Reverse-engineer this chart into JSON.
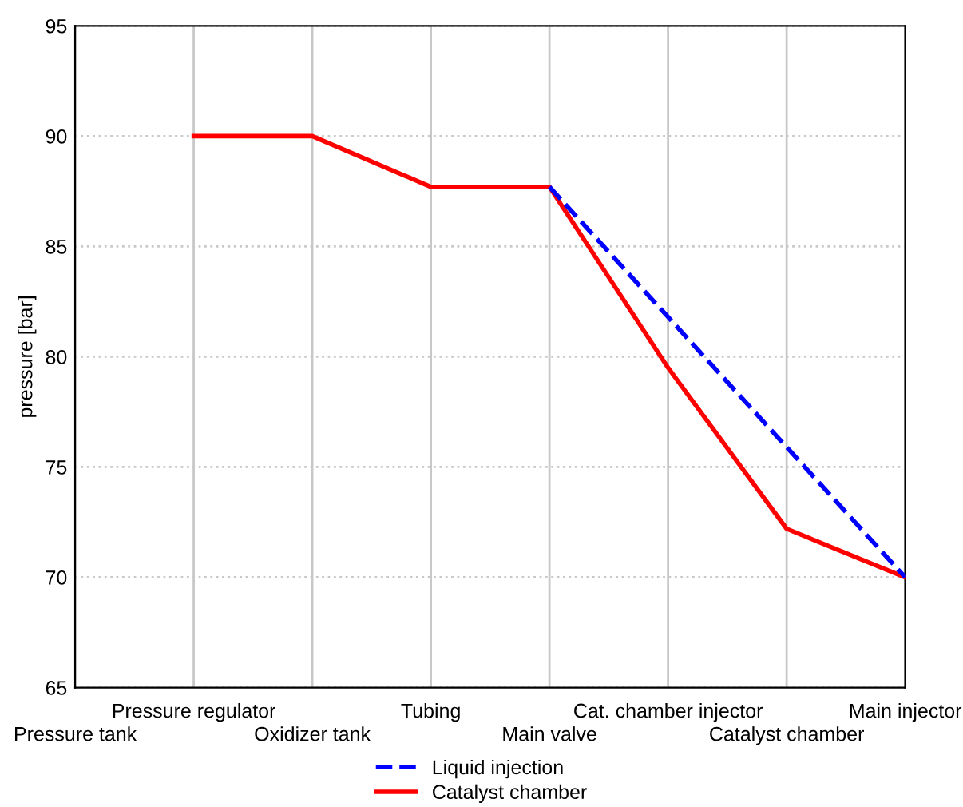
{
  "chart_data": {
    "type": "line",
    "ylabel": "pressure [bar]",
    "categories": [
      "Pressure tank",
      "Pressure regulator",
      "Oxidizer tank",
      "Tubing",
      "Main valve",
      "Cat. chamber injector",
      "Catalyst chamber",
      "Main injector"
    ],
    "series": [
      {
        "name": "Liquid injection",
        "color": "#0000ff",
        "line_style": "dashed",
        "values": [
          null,
          null,
          null,
          null,
          87.7,
          81.8,
          75.9,
          70
        ]
      },
      {
        "name": "Catalyst chamber",
        "color": "#ff0000",
        "line_style": "solid",
        "values": [
          null,
          90,
          90,
          87.7,
          87.7,
          79.5,
          72.2,
          70
        ]
      }
    ],
    "ylim": [
      65,
      95
    ],
    "yticks": [
      65,
      70,
      75,
      80,
      85,
      90,
      95
    ],
    "grid": true,
    "legend": "bottom",
    "marker": "none"
  }
}
